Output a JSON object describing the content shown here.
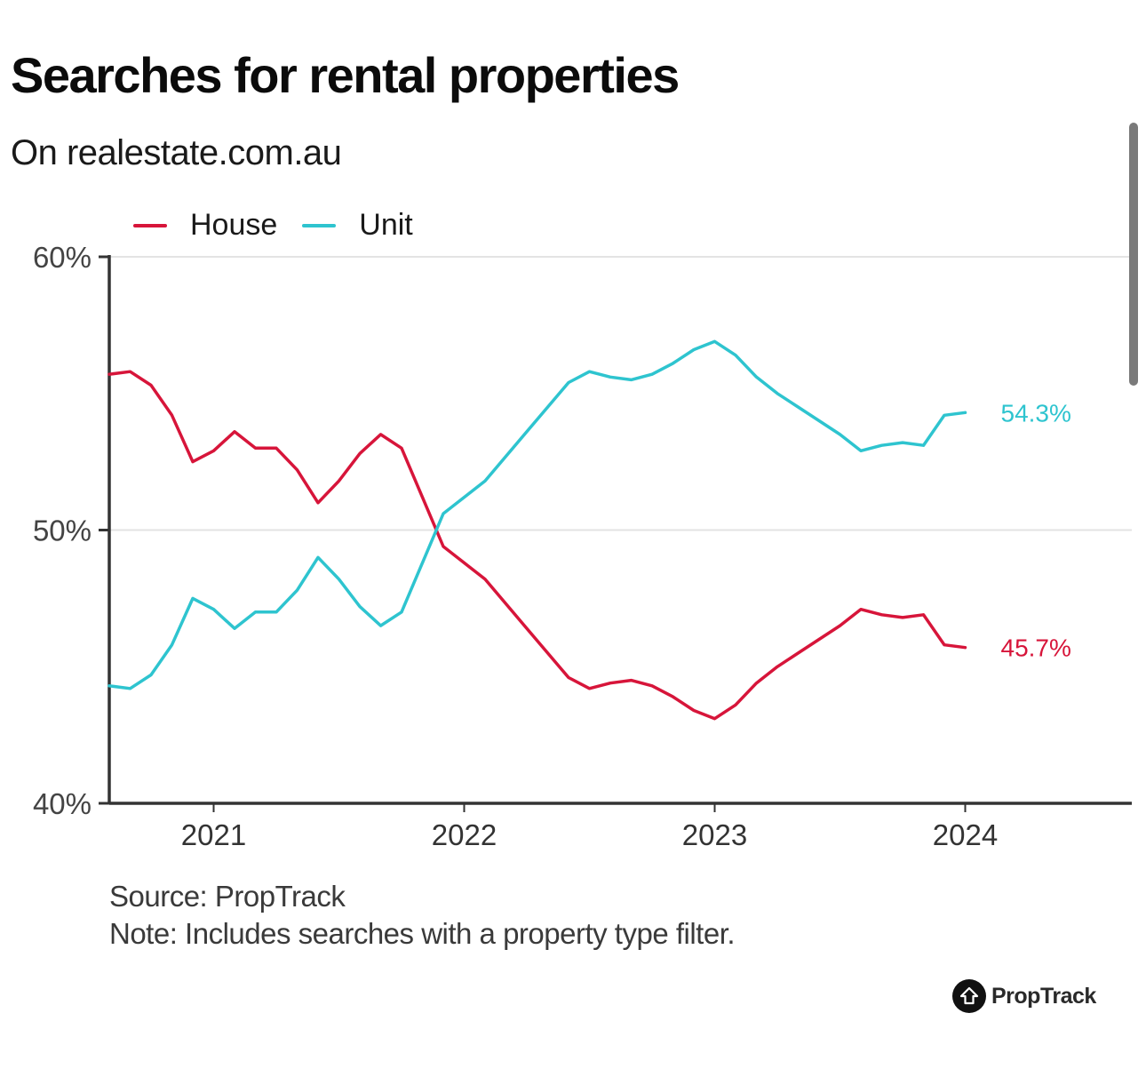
{
  "header": {
    "title": "Searches for rental properties",
    "subtitle": "On realestate.com.au"
  },
  "footer": {
    "source": "Source: PropTrack",
    "note": "Note: Includes searches with a property type filter.",
    "brand": "PropTrack",
    "brand_icon": "house-arrow-icon"
  },
  "colors": {
    "house": "#d7153a",
    "unit": "#2ec4cf",
    "axis": "#333333",
    "grid": "#e3e3e3"
  },
  "chart_data": {
    "type": "line",
    "title": "Searches for rental properties",
    "subtitle": "On realestate.com.au",
    "xlabel": "",
    "ylabel": "",
    "x_start": "2020-08",
    "x_end": "2024-01",
    "x_frequency": "monthly",
    "x": [
      "2020-08",
      "2020-09",
      "2020-10",
      "2020-11",
      "2020-12",
      "2021-01",
      "2021-02",
      "2021-03",
      "2021-04",
      "2021-05",
      "2021-06",
      "2021-07",
      "2021-08",
      "2021-09",
      "2021-10",
      "2021-11",
      "2021-12",
      "2022-01",
      "2022-02",
      "2022-03",
      "2022-04",
      "2022-05",
      "2022-06",
      "2022-07",
      "2022-08",
      "2022-09",
      "2022-10",
      "2022-11",
      "2022-12",
      "2023-01",
      "2023-02",
      "2023-03",
      "2023-04",
      "2023-05",
      "2023-06",
      "2023-07",
      "2023-08",
      "2023-09",
      "2023-10",
      "2023-11",
      "2023-12",
      "2024-01"
    ],
    "x_ticks": [
      "2021",
      "2022",
      "2023",
      "2024"
    ],
    "x_tick_months": [
      "2021-01",
      "2022-01",
      "2023-01",
      "2024-01"
    ],
    "x_range": [
      "2020-08",
      "2024-09"
    ],
    "y_ticks": [
      "40%",
      "50%",
      "60%"
    ],
    "y_tick_values": [
      40,
      50,
      60
    ],
    "ylim": [
      40,
      60
    ],
    "grid": true,
    "legend_position": "top-left",
    "series": [
      {
        "name": "House",
        "color": "#d7153a",
        "end_label": "45.7%",
        "values": [
          55.7,
          55.8,
          55.3,
          54.2,
          52.5,
          52.9,
          53.6,
          53.0,
          53.0,
          52.2,
          51.0,
          51.8,
          52.8,
          53.5,
          53.0,
          51.2,
          49.4,
          48.8,
          48.2,
          47.3,
          46.4,
          45.5,
          44.6,
          44.2,
          44.4,
          44.5,
          44.3,
          43.9,
          43.4,
          43.1,
          43.6,
          44.4,
          45.0,
          45.5,
          46.0,
          46.5,
          47.1,
          46.9,
          46.8,
          46.9,
          45.8,
          45.7
        ]
      },
      {
        "name": "Unit",
        "color": "#2ec4cf",
        "end_label": "54.3%",
        "values": [
          44.3,
          44.2,
          44.7,
          45.8,
          47.5,
          47.1,
          46.4,
          47.0,
          47.0,
          47.8,
          49.0,
          48.2,
          47.2,
          46.5,
          47.0,
          48.8,
          50.6,
          51.2,
          51.8,
          52.7,
          53.6,
          54.5,
          55.4,
          55.8,
          55.6,
          55.5,
          55.7,
          56.1,
          56.6,
          56.9,
          56.4,
          55.6,
          55.0,
          54.5,
          54.0,
          53.5,
          52.9,
          53.1,
          53.2,
          53.1,
          54.2,
          54.3
        ]
      }
    ]
  }
}
